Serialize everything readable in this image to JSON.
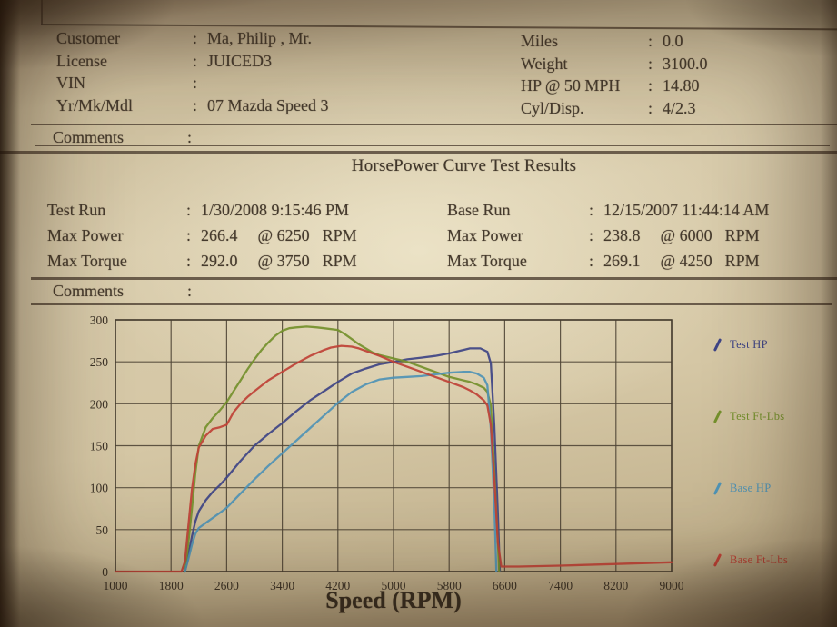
{
  "punctuation": {
    "colon": ":"
  },
  "info": {
    "left": [
      {
        "label": "Customer",
        "value": "Ma, Philip , Mr."
      },
      {
        "label": "License",
        "value": "JUICED3"
      },
      {
        "label": "VIN",
        "value": ""
      },
      {
        "label": "Yr/Mk/Mdl",
        "value": "07 Mazda Speed 3"
      }
    ],
    "right": [
      {
        "label": "Miles",
        "value": "0.0"
      },
      {
        "label": "Weight",
        "value": "3100.0"
      },
      {
        "label": "HP @ 50 MPH",
        "value": "14.80"
      },
      {
        "label": "Cyl/Disp.",
        "value": "4/2.3"
      }
    ]
  },
  "comments_row_1": {
    "label": "Comments",
    "value": ""
  },
  "title": "HorsePower Curve Test Results",
  "results": {
    "test": [
      {
        "label": "Test Run",
        "value": "1/30/2008 9:15:46 PM",
        "at": "",
        "unit": ""
      },
      {
        "label": "Max Power",
        "value": "266.4",
        "at": "@ 6250",
        "unit": "RPM"
      },
      {
        "label": "Max Torque",
        "value": "292.0",
        "at": "@ 3750",
        "unit": "RPM"
      }
    ],
    "base": [
      {
        "label": "Base Run",
        "value": "12/15/2007 11:44:14 AM",
        "at": "",
        "unit": ""
      },
      {
        "label": "Max Power",
        "value": "238.8",
        "at": "@ 6000",
        "unit": "RPM"
      },
      {
        "label": "Max Torque",
        "value": "269.1",
        "at": "@ 4250",
        "unit": "RPM"
      }
    ]
  },
  "comments_row_2": {
    "label": "Comments",
    "value": ""
  },
  "chart_data": {
    "type": "line",
    "title": "",
    "xlabel": "Speed (RPM)",
    "ylabel": "",
    "xlim": [
      1000,
      9000
    ],
    "ylim": [
      0,
      300
    ],
    "xticks": [
      1000,
      1800,
      2600,
      3400,
      4200,
      5000,
      5800,
      6600,
      7400,
      8200,
      9000
    ],
    "yticks": [
      0,
      50,
      100,
      150,
      200,
      250,
      300
    ],
    "grid": true,
    "legend_position": "right",
    "series": [
      {
        "name": "Test HP",
        "color": "#3e4486",
        "points": [
          [
            2000,
            0
          ],
          [
            2050,
            20
          ],
          [
            2100,
            42
          ],
          [
            2150,
            60
          ],
          [
            2200,
            72
          ],
          [
            2300,
            85
          ],
          [
            2400,
            95
          ],
          [
            2500,
            103
          ],
          [
            2600,
            112
          ],
          [
            2800,
            132
          ],
          [
            3000,
            150
          ],
          [
            3200,
            164
          ],
          [
            3400,
            177
          ],
          [
            3600,
            191
          ],
          [
            3800,
            204
          ],
          [
            4000,
            215
          ],
          [
            4200,
            226
          ],
          [
            4400,
            236
          ],
          [
            4600,
            242
          ],
          [
            4800,
            247
          ],
          [
            5000,
            250
          ],
          [
            5200,
            253
          ],
          [
            5400,
            255
          ],
          [
            5600,
            257
          ],
          [
            5800,
            260
          ],
          [
            6000,
            264
          ],
          [
            6100,
            266
          ],
          [
            6250,
            266
          ],
          [
            6350,
            262
          ],
          [
            6400,
            248
          ],
          [
            6450,
            175
          ],
          [
            6500,
            70
          ],
          [
            6530,
            0
          ]
        ]
      },
      {
        "name": "Test Ft-Lbs",
        "color": "#74902c",
        "points": [
          [
            2000,
            0
          ],
          [
            2050,
            35
          ],
          [
            2100,
            75
          ],
          [
            2150,
            118
          ],
          [
            2200,
            150
          ],
          [
            2300,
            172
          ],
          [
            2400,
            183
          ],
          [
            2500,
            192
          ],
          [
            2600,
            202
          ],
          [
            2700,
            215
          ],
          [
            2800,
            228
          ],
          [
            2900,
            241
          ],
          [
            3000,
            253
          ],
          [
            3100,
            264
          ],
          [
            3200,
            273
          ],
          [
            3300,
            281
          ],
          [
            3400,
            287
          ],
          [
            3500,
            290
          ],
          [
            3600,
            291
          ],
          [
            3750,
            292
          ],
          [
            3900,
            291
          ],
          [
            4000,
            290
          ],
          [
            4200,
            288
          ],
          [
            4300,
            283
          ],
          [
            4400,
            277
          ],
          [
            4500,
            271
          ],
          [
            4600,
            266
          ],
          [
            4700,
            261
          ],
          [
            4800,
            258
          ],
          [
            4900,
            256
          ],
          [
            5000,
            254
          ],
          [
            5100,
            252
          ],
          [
            5200,
            250
          ],
          [
            5300,
            247
          ],
          [
            5400,
            244
          ],
          [
            5500,
            241
          ],
          [
            5600,
            238
          ],
          [
            5700,
            235
          ],
          [
            5800,
            232
          ],
          [
            5900,
            230
          ],
          [
            6000,
            228
          ],
          [
            6100,
            226
          ],
          [
            6200,
            223
          ],
          [
            6300,
            219
          ],
          [
            6350,
            214
          ],
          [
            6400,
            198
          ],
          [
            6450,
            120
          ],
          [
            6500,
            35
          ],
          [
            6520,
            0
          ]
        ]
      },
      {
        "name": "Base HP",
        "color": "#4f93b5",
        "points": [
          [
            2000,
            0
          ],
          [
            2050,
            15
          ],
          [
            2100,
            32
          ],
          [
            2150,
            45
          ],
          [
            2200,
            52
          ],
          [
            2300,
            58
          ],
          [
            2400,
            64
          ],
          [
            2500,
            70
          ],
          [
            2600,
            76
          ],
          [
            2800,
            93
          ],
          [
            3000,
            110
          ],
          [
            3200,
            126
          ],
          [
            3400,
            141
          ],
          [
            3600,
            156
          ],
          [
            3800,
            171
          ],
          [
            4000,
            186
          ],
          [
            4200,
            201
          ],
          [
            4400,
            214
          ],
          [
            4600,
            223
          ],
          [
            4800,
            229
          ],
          [
            5000,
            231
          ],
          [
            5200,
            232
          ],
          [
            5400,
            233
          ],
          [
            5600,
            235
          ],
          [
            5800,
            237
          ],
          [
            6000,
            238
          ],
          [
            6100,
            238
          ],
          [
            6200,
            236
          ],
          [
            6300,
            231
          ],
          [
            6350,
            222
          ],
          [
            6400,
            170
          ],
          [
            6450,
            80
          ],
          [
            6480,
            0
          ]
        ]
      },
      {
        "name": "Base Ft-Lbs",
        "color": "#bf4136",
        "points": [
          [
            1000,
            0
          ],
          [
            1950,
            0
          ],
          [
            2000,
            12
          ],
          [
            2050,
            55
          ],
          [
            2100,
            98
          ],
          [
            2150,
            128
          ],
          [
            2200,
            148
          ],
          [
            2300,
            162
          ],
          [
            2400,
            170
          ],
          [
            2500,
            172
          ],
          [
            2600,
            175
          ],
          [
            2700,
            190
          ],
          [
            2800,
            200
          ],
          [
            2900,
            208
          ],
          [
            3000,
            215
          ],
          [
            3200,
            228
          ],
          [
            3400,
            238
          ],
          [
            3600,
            248
          ],
          [
            3800,
            257
          ],
          [
            4000,
            264
          ],
          [
            4100,
            267
          ],
          [
            4250,
            269
          ],
          [
            4400,
            268
          ],
          [
            4500,
            266
          ],
          [
            4600,
            263
          ],
          [
            4800,
            257
          ],
          [
            5000,
            250
          ],
          [
            5200,
            244
          ],
          [
            5400,
            238
          ],
          [
            5600,
            232
          ],
          [
            5800,
            226
          ],
          [
            6000,
            220
          ],
          [
            6100,
            216
          ],
          [
            6200,
            211
          ],
          [
            6300,
            204
          ],
          [
            6350,
            198
          ],
          [
            6400,
            175
          ],
          [
            6450,
            110
          ],
          [
            6500,
            35
          ],
          [
            6550,
            6
          ],
          [
            6800,
            6
          ],
          [
            7400,
            7
          ],
          [
            8200,
            9
          ],
          [
            9000,
            11
          ]
        ]
      }
    ]
  }
}
